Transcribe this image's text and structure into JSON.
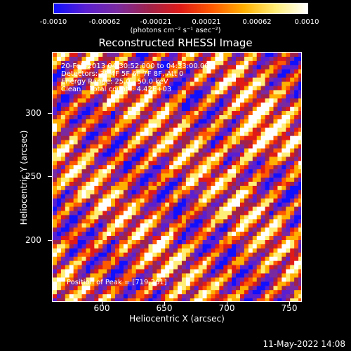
{
  "colorbar": {
    "ticks": [
      "-0.0010",
      "-0.00062",
      "-0.00021",
      "0.00021",
      "0.00062",
      "0.0010"
    ],
    "units": "(photons cm⁻² s⁻¹ asec⁻²)",
    "colors": [
      "#1010ff",
      "#5a1fd1",
      "#7a2aa0",
      "#a0224a",
      "#e01b17",
      "#ff5a00",
      "#ffb000",
      "#ffee77",
      "#ffffff"
    ]
  },
  "title": "Reconstructed RHESSI Image",
  "overlay": {
    "line1": "20-Feb-2013 04:30:52.000 to 04:33:00.000",
    "line2": "Detectors: 3F 4F 5F 6F 7F 8F, Att 0",
    "line3": "Energy Range: 25.0 - 50.0 keV",
    "line4": "Clean    Total counts: 4.42E+03",
    "peak": "Position of Peak = [719,261]"
  },
  "axes": {
    "xlabel": "Heliocentric X (arcsec)",
    "ylabel": "Heliocentric Y (arcsec)",
    "xticks": [
      "600",
      "650",
      "700",
      "750"
    ],
    "yticks": [
      "300",
      "250",
      "200"
    ]
  },
  "footer": {
    "date": "11-May-2022 14:08"
  },
  "chart_data": {
    "type": "heatmap",
    "title": "Reconstructed RHESSI Image",
    "xlabel": "Heliocentric X (arcsec)",
    "ylabel": "Heliocentric Y (arcsec)",
    "xlim": [
      562,
      760
    ],
    "ylim": [
      150,
      348
    ],
    "zlim": [
      -0.001,
      0.001
    ],
    "peak": [
      719,
      261
    ]
  }
}
